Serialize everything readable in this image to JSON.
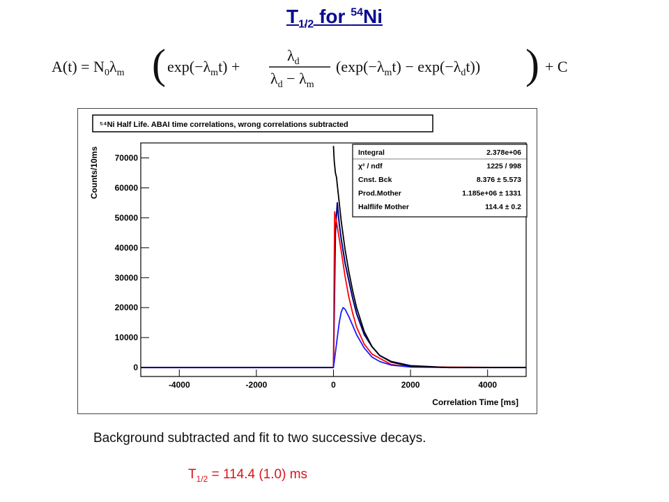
{
  "slide": {
    "title_main": "T",
    "title_sub": "1/2",
    "title_mid": " for ",
    "title_sup": "54",
    "title_end": "Ni"
  },
  "formula": {
    "lhs": "A(t) = N",
    "n0_sub": "0",
    "lambda": "λ",
    "m": "m",
    "d": "d",
    "exp1": "exp(−λ",
    "exp1_end": "t) +",
    "frac_num": "λ",
    "frac_den": "λ",
    "minus": " − λ",
    "paren_a": "(exp(−λ",
    "paren_b": "t) − exp(−λ",
    "paren_c": "t))",
    "tail": "+ C"
  },
  "caption": "Background subtracted and fit to two successive decays.",
  "result": {
    "prefix": "T",
    "sub": "1/2",
    "value": " = 114.4 (1.0) ms"
  },
  "colors": {
    "title": "#0a0a8f",
    "total_fit": "#000000",
    "mother": "#ff0000",
    "daughter": "#1a1aff",
    "data": "#000080",
    "result": "#d8141a"
  },
  "chart_data": {
    "type": "line",
    "title": "⁵⁴Ni Half Life. ABAI time correlations, wrong correlations subtracted",
    "xlabel": "Correlation Time [ms]",
    "ylabel": "Counts/10ms",
    "xlim": [
      -5000,
      5000
    ],
    "ylim": [
      -3000,
      75000
    ],
    "xticks": [
      -4000,
      -2000,
      0,
      2000,
      4000
    ],
    "yticks": [
      0,
      10000,
      20000,
      30000,
      40000,
      50000,
      60000,
      70000
    ],
    "stats_box": [
      {
        "label": "Integral",
        "value": "2.378e+06"
      },
      {
        "label": "χ² / ndf",
        "value": "1225 / 998"
      },
      {
        "label": "Cnst. Bck",
        "value": "8.376 ± 5.573"
      },
      {
        "label": "Prod.Mother",
        "value": "1.185e+06 ± 1331"
      },
      {
        "label": "Halflife Mother",
        "value": "114.4 ± 0.2"
      }
    ],
    "series": [
      {
        "key": "data",
        "x": [
          -5000,
          -4000,
          -3000,
          -2000,
          -1000,
          -10,
          0,
          50,
          100,
          150,
          200,
          300,
          400,
          500,
          600,
          800,
          1000,
          1200,
          1500,
          2000,
          3000,
          4000,
          5000
        ],
        "y": [
          0,
          0,
          0,
          0,
          0,
          0,
          0,
          45000,
          55000,
          48000,
          43000,
          35000,
          29000,
          23000,
          18000,
          11000,
          7000,
          4000,
          2000,
          600,
          0,
          0,
          0
        ]
      },
      {
        "key": "total_fit",
        "x": [
          0,
          20,
          50,
          80,
          100,
          150,
          200,
          300,
          400,
          500,
          600,
          800,
          1000,
          1200,
          1500,
          2000,
          3000,
          5000
        ],
        "y": [
          74000,
          69000,
          65000,
          63500,
          61000,
          55000,
          49000,
          39500,
          32000,
          25500,
          20000,
          12000,
          7000,
          4000,
          1800,
          400,
          0,
          0
        ]
      },
      {
        "key": "mother",
        "x": [
          0,
          30,
          100,
          150,
          200,
          300,
          400,
          500,
          600,
          800,
          1000,
          1500,
          2000,
          5000
        ],
        "y": [
          0,
          52000,
          47000,
          43000,
          39000,
          30500,
          23500,
          18000,
          13500,
          7800,
          4500,
          1000,
          200,
          0
        ]
      },
      {
        "key": "daughter",
        "x": [
          0,
          50,
          100,
          150,
          200,
          250,
          300,
          400,
          500,
          600,
          800,
          1000,
          1200,
          1500,
          2000,
          3000,
          5000
        ],
        "y": [
          0,
          5000,
          10000,
          15000,
          18500,
          20000,
          19500,
          17000,
          14000,
          11000,
          6500,
          3500,
          2000,
          800,
          200,
          0,
          0
        ]
      }
    ]
  }
}
